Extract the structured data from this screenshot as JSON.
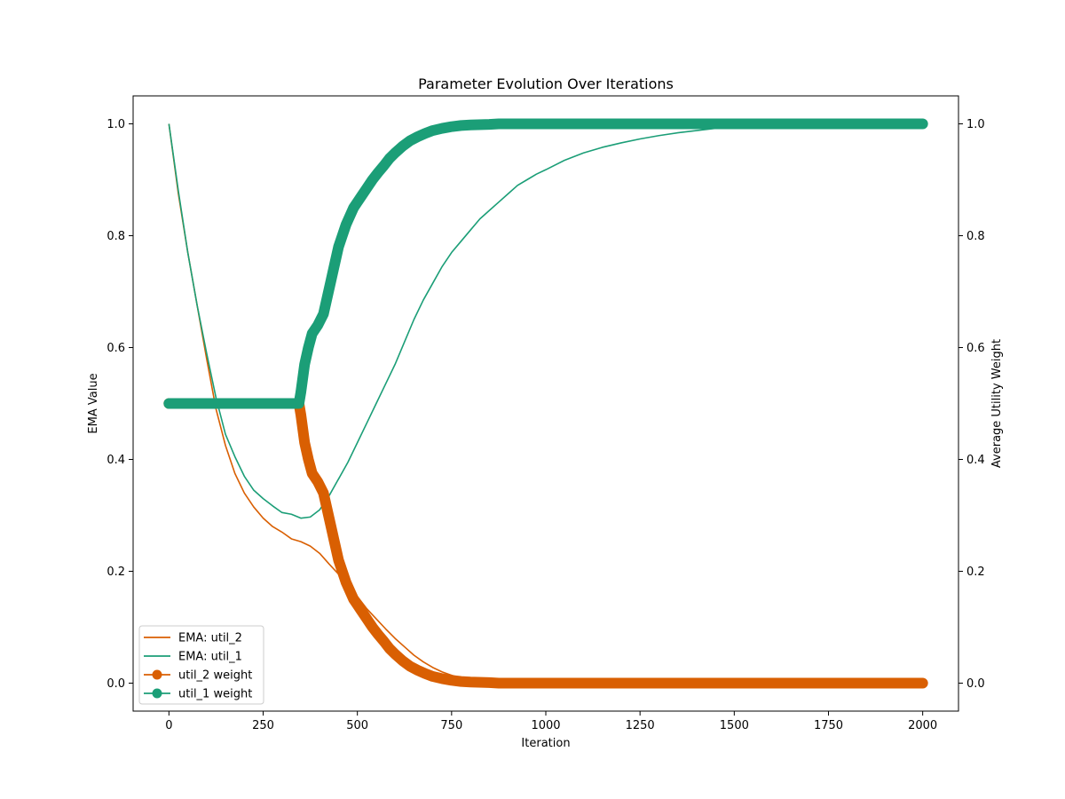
{
  "chart_data": {
    "type": "line",
    "title": "Parameter Evolution Over Iterations",
    "xlabel": "Iteration",
    "ylabel": "EMA Value",
    "ylabel_right": "Average Utility Weight",
    "xlim": [
      -95,
      2095
    ],
    "ylim": [
      -0.05,
      1.05
    ],
    "ylim_right": [
      -0.05,
      1.05
    ],
    "xticks": [
      0,
      250,
      500,
      750,
      1000,
      1250,
      1500,
      1750,
      2000
    ],
    "yticks": [
      0.0,
      0.2,
      0.4,
      0.6,
      0.8,
      1.0
    ],
    "yticks_right": [
      0.0,
      0.2,
      0.4,
      0.6,
      0.8,
      1.0
    ],
    "grid": false,
    "legend_position": "lower-left",
    "series": [
      {
        "name": "EMA: util_2",
        "axis": "left",
        "color": "#d95f02",
        "marker": "none",
        "points": [
          [
            0,
            1.0
          ],
          [
            25,
            0.875
          ],
          [
            50,
            0.77
          ],
          [
            75,
            0.675
          ],
          [
            100,
            0.58
          ],
          [
            125,
            0.49
          ],
          [
            150,
            0.425
          ],
          [
            175,
            0.375
          ],
          [
            200,
            0.34
          ],
          [
            225,
            0.315
          ],
          [
            250,
            0.295
          ],
          [
            275,
            0.28
          ],
          [
            300,
            0.27
          ],
          [
            325,
            0.258
          ],
          [
            350,
            0.253
          ],
          [
            375,
            0.245
          ],
          [
            400,
            0.232
          ],
          [
            425,
            0.213
          ],
          [
            450,
            0.195
          ],
          [
            475,
            0.177
          ],
          [
            500,
            0.155
          ],
          [
            525,
            0.133
          ],
          [
            550,
            0.115
          ],
          [
            575,
            0.097
          ],
          [
            600,
            0.08
          ],
          [
            625,
            0.065
          ],
          [
            650,
            0.05
          ],
          [
            675,
            0.038
          ],
          [
            700,
            0.028
          ],
          [
            725,
            0.02
          ],
          [
            750,
            0.014
          ],
          [
            775,
            0.009
          ],
          [
            800,
            0.006
          ],
          [
            850,
            0.003
          ],
          [
            900,
            0.0015
          ],
          [
            1000,
            0.0005
          ],
          [
            1200,
            0.0
          ],
          [
            1500,
            0.0
          ],
          [
            2000,
            0.0
          ]
        ]
      },
      {
        "name": "EMA: util_1",
        "axis": "left",
        "color": "#1b9e77",
        "marker": "none",
        "points": [
          [
            0,
            1.0
          ],
          [
            25,
            0.88
          ],
          [
            50,
            0.77
          ],
          [
            75,
            0.675
          ],
          [
            100,
            0.59
          ],
          [
            125,
            0.51
          ],
          [
            150,
            0.445
          ],
          [
            175,
            0.405
          ],
          [
            200,
            0.37
          ],
          [
            225,
            0.345
          ],
          [
            250,
            0.33
          ],
          [
            275,
            0.317
          ],
          [
            300,
            0.305
          ],
          [
            325,
            0.302
          ],
          [
            350,
            0.295
          ],
          [
            375,
            0.297
          ],
          [
            400,
            0.31
          ],
          [
            425,
            0.335
          ],
          [
            450,
            0.365
          ],
          [
            475,
            0.395
          ],
          [
            500,
            0.43
          ],
          [
            525,
            0.465
          ],
          [
            550,
            0.5
          ],
          [
            575,
            0.535
          ],
          [
            600,
            0.57
          ],
          [
            625,
            0.61
          ],
          [
            650,
            0.65
          ],
          [
            675,
            0.685
          ],
          [
            700,
            0.715
          ],
          [
            725,
            0.745
          ],
          [
            750,
            0.77
          ],
          [
            775,
            0.79
          ],
          [
            800,
            0.81
          ],
          [
            825,
            0.83
          ],
          [
            850,
            0.845
          ],
          [
            875,
            0.86
          ],
          [
            900,
            0.875
          ],
          [
            925,
            0.89
          ],
          [
            950,
            0.9
          ],
          [
            975,
            0.91
          ],
          [
            1000,
            0.918
          ],
          [
            1050,
            0.935
          ],
          [
            1100,
            0.948
          ],
          [
            1150,
            0.958
          ],
          [
            1200,
            0.966
          ],
          [
            1250,
            0.973
          ],
          [
            1300,
            0.979
          ],
          [
            1350,
            0.984
          ],
          [
            1400,
            0.988
          ],
          [
            1450,
            0.992
          ],
          [
            1500,
            0.996
          ],
          [
            1550,
            0.998
          ],
          [
            1600,
            0.999
          ],
          [
            1700,
            1.0
          ],
          [
            2000,
            1.0
          ]
        ]
      },
      {
        "name": "util_2 weight",
        "axis": "right",
        "color": "#d95f02",
        "marker": "o",
        "points": [
          [
            0,
            0.5
          ],
          [
            345,
            0.5
          ],
          [
            350,
            0.48
          ],
          [
            360,
            0.43
          ],
          [
            370,
            0.4
          ],
          [
            380,
            0.375
          ],
          [
            395,
            0.36
          ],
          [
            410,
            0.34
          ],
          [
            420,
            0.31
          ],
          [
            430,
            0.28
          ],
          [
            440,
            0.25
          ],
          [
            450,
            0.22
          ],
          [
            460,
            0.2
          ],
          [
            470,
            0.18
          ],
          [
            480,
            0.165
          ],
          [
            490,
            0.15
          ],
          [
            500,
            0.14
          ],
          [
            510,
            0.13
          ],
          [
            525,
            0.115
          ],
          [
            540,
            0.1
          ],
          [
            555,
            0.087
          ],
          [
            570,
            0.075
          ],
          [
            585,
            0.062
          ],
          [
            600,
            0.052
          ],
          [
            620,
            0.04
          ],
          [
            640,
            0.03
          ],
          [
            660,
            0.023
          ],
          [
            680,
            0.017
          ],
          [
            700,
            0.012
          ],
          [
            725,
            0.008
          ],
          [
            750,
            0.005
          ],
          [
            775,
            0.003
          ],
          [
            800,
            0.002
          ],
          [
            850,
            0.001
          ],
          [
            875,
            0.0
          ],
          [
            2000,
            0.0
          ]
        ]
      },
      {
        "name": "util_1 weight",
        "axis": "right",
        "color": "#1b9e77",
        "marker": "o",
        "points": [
          [
            0,
            0.5
          ],
          [
            345,
            0.5
          ],
          [
            350,
            0.52
          ],
          [
            360,
            0.57
          ],
          [
            370,
            0.6
          ],
          [
            380,
            0.625
          ],
          [
            395,
            0.64
          ],
          [
            410,
            0.66
          ],
          [
            420,
            0.69
          ],
          [
            430,
            0.72
          ],
          [
            440,
            0.75
          ],
          [
            450,
            0.78
          ],
          [
            460,
            0.8
          ],
          [
            470,
            0.82
          ],
          [
            480,
            0.835
          ],
          [
            490,
            0.85
          ],
          [
            500,
            0.86
          ],
          [
            510,
            0.87
          ],
          [
            525,
            0.885
          ],
          [
            540,
            0.9
          ],
          [
            555,
            0.913
          ],
          [
            570,
            0.925
          ],
          [
            585,
            0.938
          ],
          [
            600,
            0.948
          ],
          [
            620,
            0.96
          ],
          [
            640,
            0.97
          ],
          [
            660,
            0.977
          ],
          [
            680,
            0.983
          ],
          [
            700,
            0.988
          ],
          [
            725,
            0.992
          ],
          [
            750,
            0.995
          ],
          [
            775,
            0.997
          ],
          [
            800,
            0.998
          ],
          [
            850,
            0.999
          ],
          [
            875,
            1.0
          ],
          [
            2000,
            1.0
          ]
        ]
      }
    ]
  }
}
